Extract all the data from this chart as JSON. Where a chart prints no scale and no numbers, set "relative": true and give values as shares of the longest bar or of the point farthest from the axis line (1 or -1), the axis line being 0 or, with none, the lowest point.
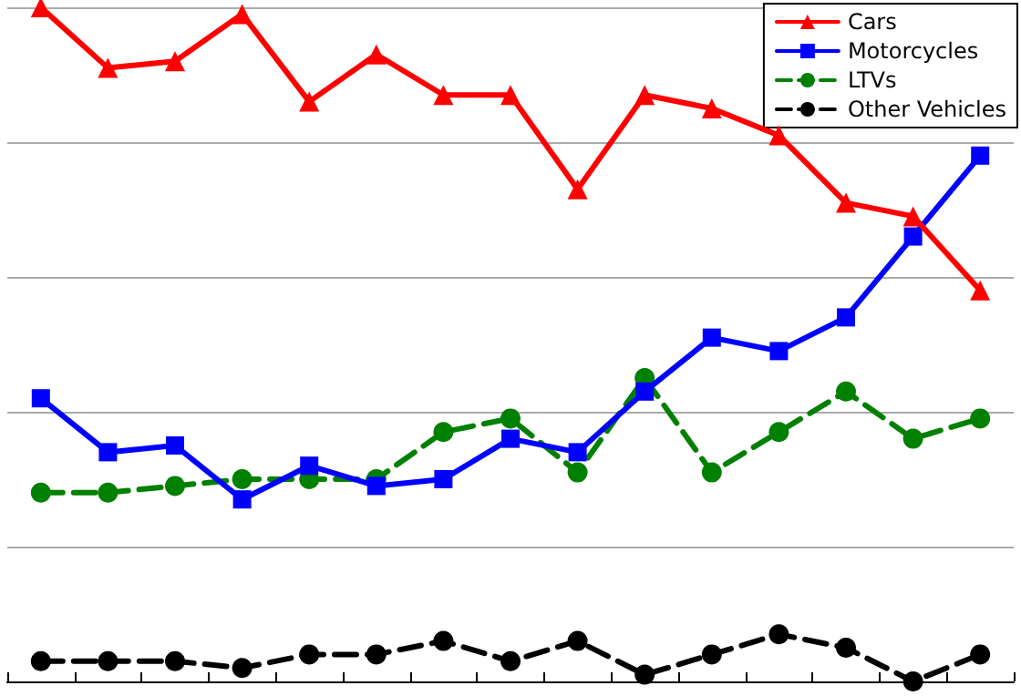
{
  "chart_data": {
    "type": "line",
    "relative": true,
    "categories": [
      null,
      null,
      null,
      null,
      null,
      null,
      null,
      null,
      null,
      null,
      null,
      null,
      null,
      null,
      null
    ],
    "grid": "y",
    "legend": "top right",
    "series": [
      {
        "name": "Cars",
        "color": "#ff0000",
        "marker": "triangle",
        "line_style": "solid",
        "values": [
          1,
          0.91,
          0.92,
          0.99,
          0.86,
          0.93,
          0.87,
          0.87,
          0.73,
          0.87,
          0.85,
          0.81,
          0.71,
          0.69,
          0.58
        ]
      },
      {
        "name": "Motorcycles",
        "color": "#0000ff",
        "marker": "square",
        "line_style": "solid",
        "values": [
          0.42,
          0.34,
          0.35,
          0.27,
          0.32,
          0.29,
          0.3,
          0.36,
          0.34,
          0.43,
          0.51,
          0.49,
          0.54,
          0.66,
          0.78
        ]
      },
      {
        "name": "LTVs",
        "color": "#008000",
        "marker": "circle",
        "line_style": "dashed",
        "values": [
          0.28,
          0.28,
          0.29,
          0.3,
          0.3,
          0.3,
          0.37,
          0.39,
          0.31,
          0.45,
          0.31,
          0.37,
          0.43,
          0.36,
          0.39
        ]
      },
      {
        "name": "Other Vehicles",
        "color": "#000000",
        "marker": "circle",
        "line_style": "dashed",
        "values": [
          0.03,
          0.03,
          0.03,
          0.02,
          0.04,
          0.04,
          0.06,
          0.03,
          0.06,
          0.01,
          0.04,
          0.07,
          0.05,
          0,
          0.04
        ]
      }
    ]
  }
}
